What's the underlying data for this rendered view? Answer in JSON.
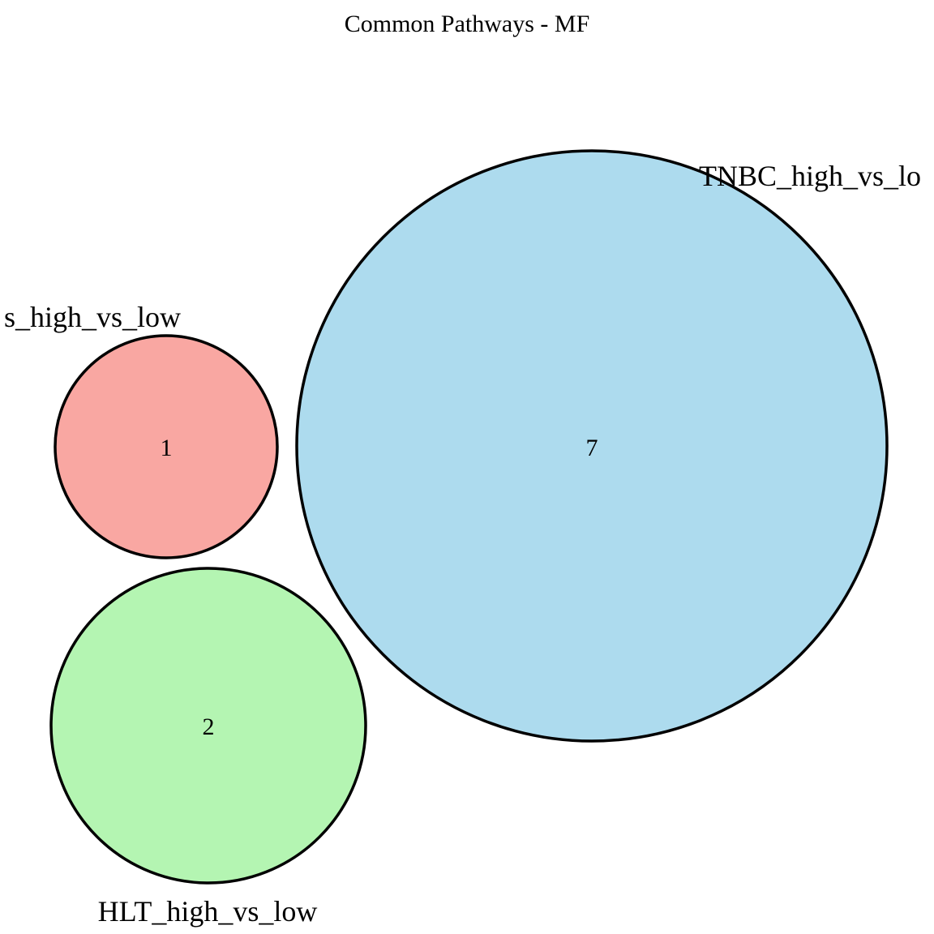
{
  "title": "Common Pathways - MF",
  "sets": [
    {
      "id": "first",
      "label": "s_high_vs_low",
      "count": "1",
      "fill": "#f9a7a2"
    },
    {
      "id": "hlt",
      "label": "HLT_high_vs_low",
      "count": "2",
      "fill": "#b4f5b2"
    },
    {
      "id": "tnbc",
      "label": "TNBC_high_vs_lo",
      "count": "7",
      "fill": "#addbee"
    }
  ]
}
